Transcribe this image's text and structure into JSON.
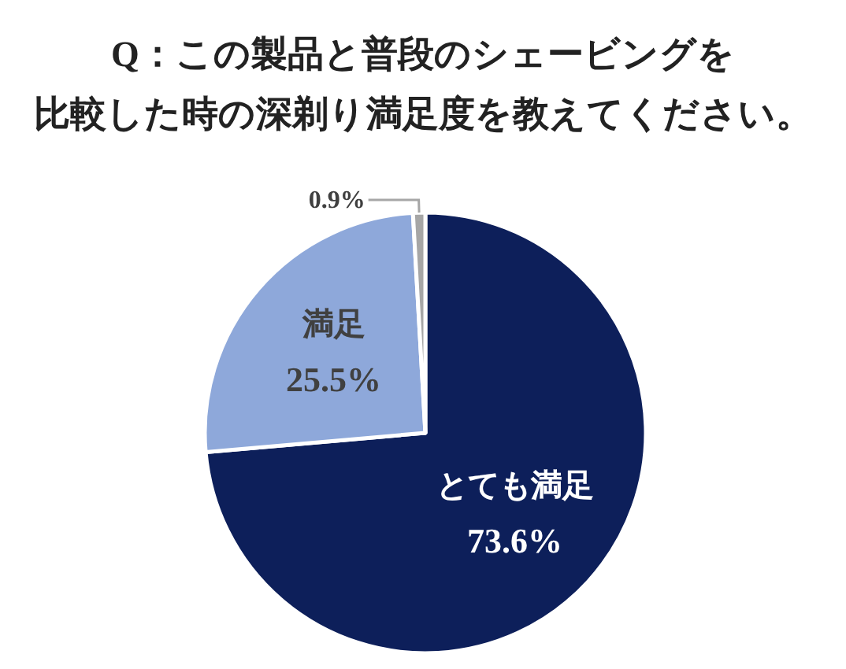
{
  "chart_data": {
    "type": "pie",
    "title": "Q：この製品と普段のシェービングを比較した時の深剃り満足度を教えてください。",
    "categories": [
      "とても満足",
      "満足",
      null
    ],
    "values": [
      73.6,
      25.5,
      0.9
    ],
    "colors": [
      "#0d1f5a",
      "#8ea8da",
      "#a6a6a6"
    ],
    "value_labels": [
      "73.6%",
      "25.5%",
      "0.9%"
    ]
  }
}
